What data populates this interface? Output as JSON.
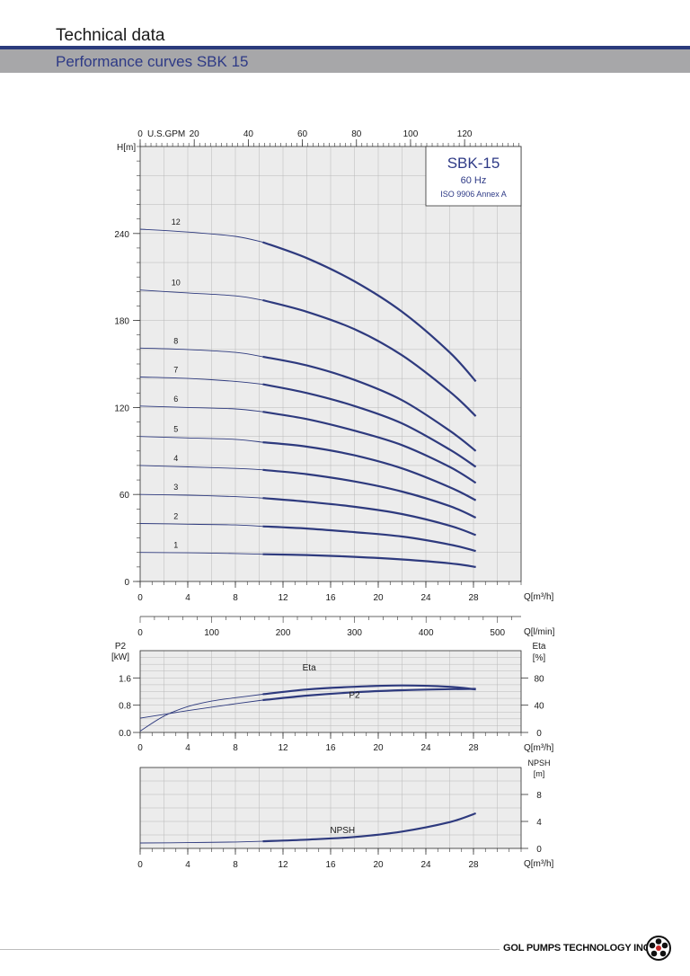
{
  "header": {
    "title": "Technical data",
    "subtitle": "Performance curves SBK 15"
  },
  "footer": {
    "company": "GOL PUMPS TECHNOLOGY INC"
  },
  "colors": {
    "accent": "#2b3b7c",
    "curve": "#2e3a7e",
    "grid": "#b8b8b8",
    "plot_bg": "#ececec",
    "header_gray": "#a7a7a9"
  },
  "chart_data": [
    {
      "type": "line",
      "title_box": {
        "title": "SBK-15",
        "freq": "60 Hz",
        "standard": "ISO 9906 Annex A"
      },
      "ylabel": "H[m]",
      "xlabel": "Q[m³/h]",
      "top_axis_label": "U.S.GPM",
      "xlim": [
        0,
        32
      ],
      "ylim": [
        0,
        300
      ],
      "x_ticks": [
        0,
        4,
        8,
        12,
        16,
        20,
        24,
        28
      ],
      "y_ticks": [
        0,
        60,
        120,
        180,
        240
      ],
      "top_ticks": [
        0,
        20,
        40,
        60,
        80,
        100,
        120
      ],
      "grid": true,
      "operating_range_start_q": 10.3,
      "series": [
        {
          "name": "12",
          "points": [
            [
              0,
              243
            ],
            [
              4,
              241
            ],
            [
              8,
              238
            ],
            [
              10.3,
              234
            ],
            [
              14,
              223
            ],
            [
              18,
              207
            ],
            [
              22,
              186
            ],
            [
              26,
              158
            ],
            [
              28.2,
              138
            ]
          ]
        },
        {
          "name": "10",
          "points": [
            [
              0,
              201
            ],
            [
              4,
              199
            ],
            [
              8,
              197
            ],
            [
              10.3,
              194
            ],
            [
              14,
              186
            ],
            [
              18,
              174
            ],
            [
              22,
              156
            ],
            [
              26,
              131
            ],
            [
              28.2,
              114
            ]
          ]
        },
        {
          "name": "8",
          "points": [
            [
              0,
              161
            ],
            [
              4,
              160
            ],
            [
              8,
              158
            ],
            [
              10.3,
              155
            ],
            [
              14,
              149
            ],
            [
              18,
              139
            ],
            [
              22,
              125
            ],
            [
              26,
              104
            ],
            [
              28.2,
              90
            ]
          ]
        },
        {
          "name": "7",
          "points": [
            [
              0,
              141
            ],
            [
              4,
              140
            ],
            [
              8,
              138
            ],
            [
              10.3,
              136
            ],
            [
              14,
              130
            ],
            [
              18,
              121
            ],
            [
              22,
              109
            ],
            [
              26,
              91
            ],
            [
              28.2,
              79
            ]
          ]
        },
        {
          "name": "6",
          "points": [
            [
              0,
              121
            ],
            [
              4,
              120
            ],
            [
              8,
              119
            ],
            [
              10.3,
              117
            ],
            [
              14,
              112
            ],
            [
              18,
              104
            ],
            [
              22,
              94
            ],
            [
              26,
              79
            ],
            [
              28.2,
              68
            ]
          ]
        },
        {
          "name": "5",
          "points": [
            [
              0,
              100
            ],
            [
              4,
              99
            ],
            [
              8,
              98
            ],
            [
              10.3,
              96
            ],
            [
              14,
              93
            ],
            [
              18,
              87
            ],
            [
              22,
              78
            ],
            [
              26,
              65
            ],
            [
              28.2,
              56
            ]
          ]
        },
        {
          "name": "4",
          "points": [
            [
              0,
              80
            ],
            [
              4,
              79
            ],
            [
              8,
              78
            ],
            [
              10.3,
              77
            ],
            [
              14,
              74
            ],
            [
              18,
              69
            ],
            [
              22,
              62
            ],
            [
              26,
              52
            ],
            [
              28.2,
              44
            ]
          ]
        },
        {
          "name": "3",
          "points": [
            [
              0,
              60
            ],
            [
              4,
              59.5
            ],
            [
              8,
              58.5
            ],
            [
              10.3,
              57.5
            ],
            [
              14,
              55
            ],
            [
              18,
              51.5
            ],
            [
              22,
              46.5
            ],
            [
              26,
              38.5
            ],
            [
              28.2,
              32
            ]
          ]
        },
        {
          "name": "2",
          "points": [
            [
              0,
              40
            ],
            [
              4,
              39.5
            ],
            [
              8,
              39
            ],
            [
              10.3,
              38
            ],
            [
              14,
              36.5
            ],
            [
              18,
              34
            ],
            [
              22,
              31
            ],
            [
              26,
              25.5
            ],
            [
              28.2,
              21
            ]
          ]
        },
        {
          "name": "1",
          "points": [
            [
              0,
              20
            ],
            [
              4,
              19.8
            ],
            [
              8,
              19.3
            ],
            [
              10.3,
              18.8
            ],
            [
              14,
              18.2
            ],
            [
              18,
              17
            ],
            [
              22,
              15.2
            ],
            [
              26,
              12.5
            ],
            [
              28.2,
              10
            ]
          ]
        }
      ]
    },
    {
      "type": "axis",
      "xlabel": "Q[l/min]",
      "xlim": [
        0,
        533
      ],
      "x_ticks": [
        0,
        100,
        200,
        300,
        400,
        500
      ]
    },
    {
      "type": "line",
      "ylabel_left": [
        "P2",
        "[kW]"
      ],
      "ylabel_right": [
        "Eta",
        "[%]"
      ],
      "xlabel": "Q[m³/h]",
      "xlim": [
        0,
        32
      ],
      "ylim": [
        0,
        2.4
      ],
      "ylim_right": [
        0,
        120
      ],
      "x_ticks": [
        0,
        4,
        8,
        12,
        16,
        20,
        24,
        28
      ],
      "y_ticks": [
        0.0,
        0.8,
        1.6
      ],
      "y_ticks_right": [
        0,
        40,
        80
      ],
      "grid": true,
      "series": [
        {
          "name": "Eta",
          "axis": "right",
          "points": [
            [
              0,
              2
            ],
            [
              2,
              24
            ],
            [
              4,
              38
            ],
            [
              6,
              46
            ],
            [
              8,
              51
            ],
            [
              10.3,
              56
            ],
            [
              14,
              63
            ],
            [
              18,
              67
            ],
            [
              22,
              69
            ],
            [
              26,
              67
            ],
            [
              28.2,
              63
            ]
          ]
        },
        {
          "name": "P2",
          "axis": "left",
          "points": [
            [
              0,
              0.42
            ],
            [
              4,
              0.64
            ],
            [
              8,
              0.84
            ],
            [
              10.3,
              0.95
            ],
            [
              14,
              1.08
            ],
            [
              18,
              1.18
            ],
            [
              22,
              1.24
            ],
            [
              26,
              1.27
            ],
            [
              28.2,
              1.28
            ]
          ]
        }
      ]
    },
    {
      "type": "line",
      "ylabel_right": [
        "NPSH",
        "[m]"
      ],
      "xlabel": "Q[m³/h]",
      "xlim": [
        0,
        32
      ],
      "ylim": [
        0,
        12
      ],
      "x_ticks": [
        0,
        4,
        8,
        12,
        16,
        20,
        24,
        28
      ],
      "y_ticks_right": [
        0,
        4,
        8
      ],
      "grid": true,
      "series": [
        {
          "name": "NPSH",
          "points": [
            [
              0,
              0.8
            ],
            [
              4,
              0.85
            ],
            [
              8,
              0.95
            ],
            [
              10.3,
              1.05
            ],
            [
              14,
              1.3
            ],
            [
              18,
              1.7
            ],
            [
              22,
              2.5
            ],
            [
              26,
              3.9
            ],
            [
              28.2,
              5.2
            ]
          ]
        }
      ]
    }
  ]
}
